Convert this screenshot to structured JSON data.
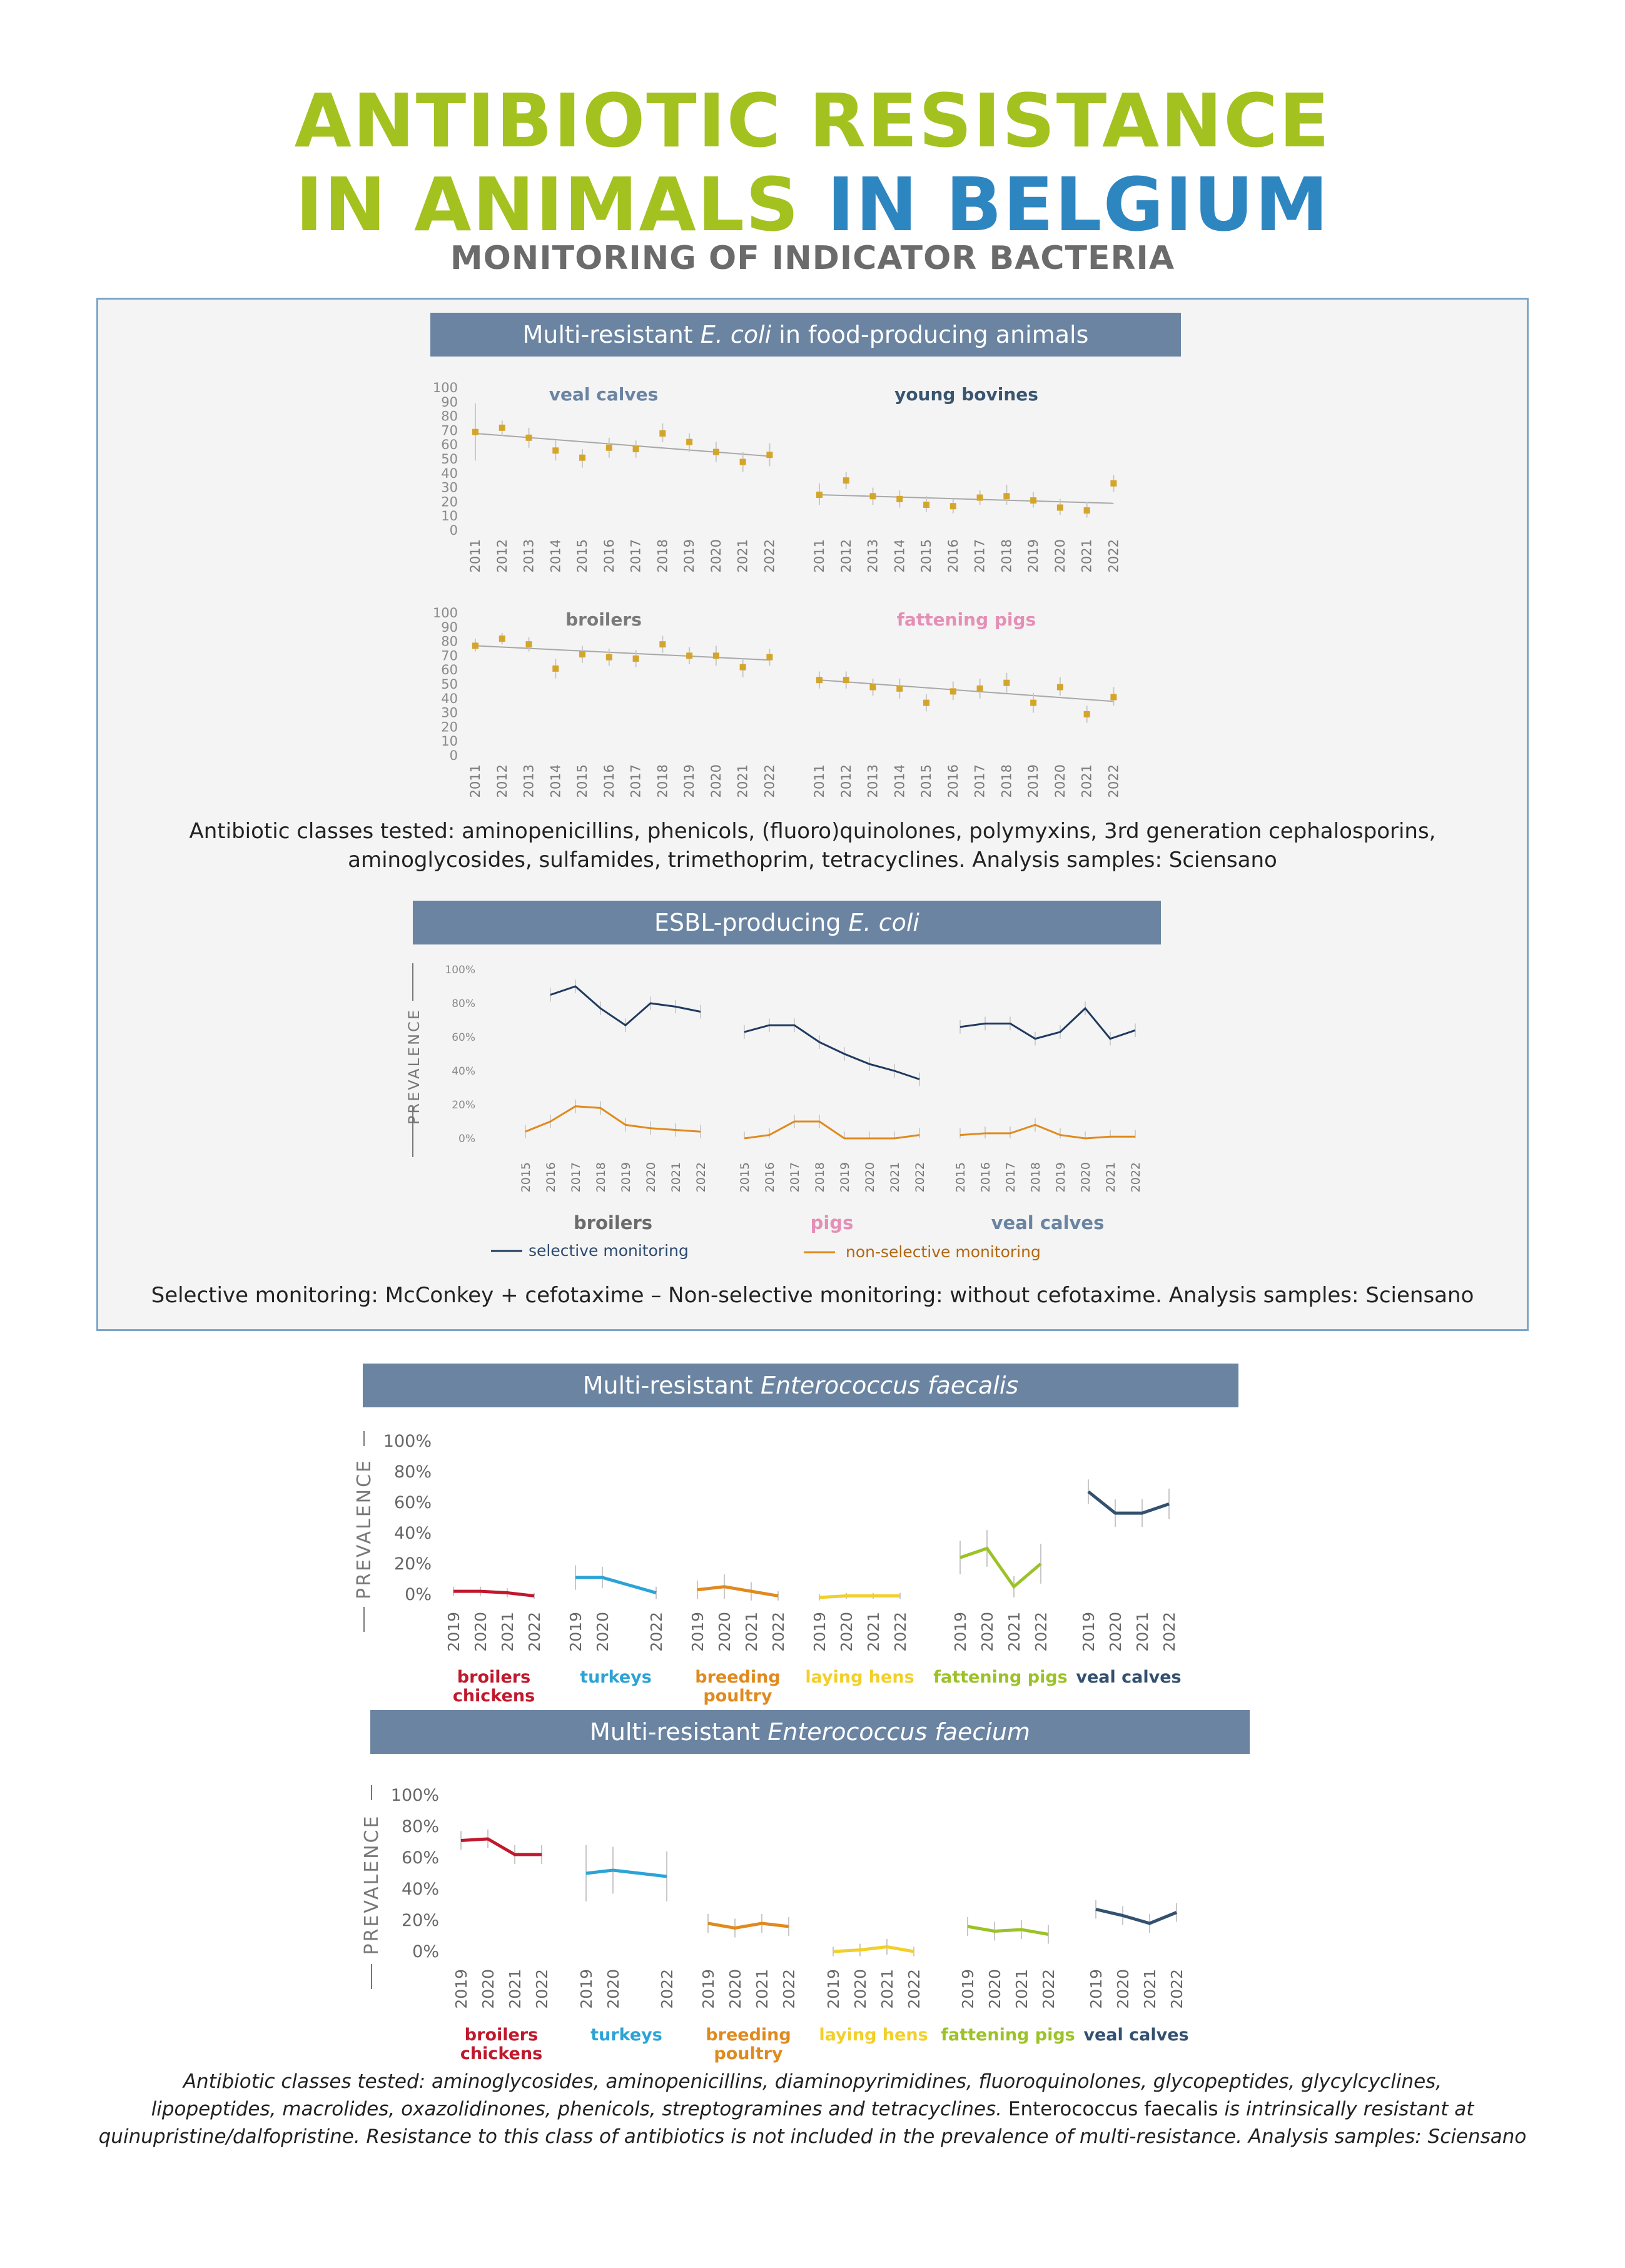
{
  "header": {
    "title_line1": "ANTIBIOTIC RESISTANCE",
    "title_line2_part1": "IN ANIMALS",
    "title_line2_part2": "IN BELGIUM",
    "subtitle": "MONITORING OF INDICATOR BACTERIA"
  },
  "colors": {
    "green": "#a3c21f",
    "blue": "#2e86c1",
    "band": "#6a84a2",
    "gold": "#d4a52a",
    "navy": "#1f3a5f",
    "orange": "#e08a1e",
    "red": "#c0182c",
    "cyan": "#2ba3d6",
    "yellow": "#f2cf2a",
    "lime": "#9cc227",
    "darkblue": "#33506f"
  },
  "sections": {
    "multi_ecoli": {
      "band_pre": "Multi-resistant ",
      "band_it": "E. coli",
      "band_post": " in food-producing animals"
    },
    "esbl": {
      "band_pre": "ESBL-producing ",
      "band_it": "E. coli"
    },
    "faecalis": {
      "band_pre": "Multi-resistant ",
      "band_it": "Enterococcus faecalis"
    },
    "faecium": {
      "band_pre": "Multi-resistant ",
      "band_it": "Enterococcus faecium"
    }
  },
  "notes": {
    "ecoli_line1": "Antibiotic classes tested: aminopenicillins, phenicols, (fluoro)quinolones, polymyxins, 3rd generation cephalosporins,",
    "ecoli_line2": "aminoglycosides, sulfamides, trimethoprim, tetracyclines. Analysis samples: Sciensano",
    "esbl": "Selective monitoring: McConkey + cefotaxime  – Non-selective monitoring: without cefotaxime. Analysis samples: Sciensano",
    "foot_line1": "Antibiotic classes tested: aminoglycosides, aminopenicillins, diaminopyrimidines, fluoroquinolones, glycopeptides, glycylcyclines,",
    "foot_line2_it": "lipopeptides, macrolides, oxazolidinones, phenicols, streptogramines and tetracyclines.",
    "foot_line2_up": " Enterococcus faecalis ",
    "foot_line2_it2": "is intrinsically resistant at",
    "foot_line3": "quinupristine/dalfopristine. Resistance to this class of antibiotics is not included in the prevalence of multi-resistance. Analysis samples: Sciensano"
  },
  "chart_data": [
    {
      "id": "multi-ecoli",
      "type": "scatter",
      "ylim": [
        0,
        100
      ],
      "yticks": [
        "0",
        "10",
        "20",
        "30",
        "40",
        "50",
        "60",
        "70",
        "80",
        "90",
        "100"
      ],
      "x": [
        "2011",
        "2012",
        "2013",
        "2014",
        "2015",
        "2016",
        "2017",
        "2018",
        "2019",
        "2020",
        "2021",
        "2022"
      ],
      "panels": [
        {
          "name": "veal calves",
          "color": "#6a84a2",
          "values": [
            69,
            72,
            65,
            56,
            51,
            58,
            57,
            68,
            62,
            55,
            48,
            53
          ],
          "lower": [
            49,
            66,
            58,
            49,
            44,
            51,
            51,
            62,
            55,
            48,
            41,
            45
          ],
          "upper": [
            89,
            77,
            72,
            63,
            57,
            65,
            63,
            75,
            68,
            62,
            55,
            61
          ],
          "trend": [
            68,
            52
          ]
        },
        {
          "name": "young bovines",
          "color": "#3a5570",
          "values": [
            25,
            35,
            24,
            22,
            18,
            17,
            23,
            24,
            21,
            16,
            14,
            33
          ],
          "lower": [
            18,
            29,
            18,
            16,
            13,
            12,
            18,
            18,
            16,
            11,
            9,
            27
          ],
          "upper": [
            33,
            41,
            30,
            28,
            24,
            22,
            28,
            32,
            27,
            22,
            20,
            39
          ],
          "trend": [
            25,
            19
          ]
        },
        {
          "name": "broilers",
          "color": "#7a7a7a",
          "values": [
            77,
            82,
            78,
            61,
            71,
            69,
            68,
            78,
            70,
            70,
            62,
            69
          ],
          "lower": [
            73,
            78,
            73,
            54,
            65,
            63,
            62,
            72,
            64,
            63,
            55,
            63
          ],
          "upper": [
            82,
            86,
            83,
            68,
            77,
            75,
            74,
            84,
            76,
            77,
            68,
            75
          ],
          "trend": [
            77,
            67
          ]
        },
        {
          "name": "fattening pigs",
          "color": "#e58fb6",
          "values": [
            53,
            53,
            48,
            47,
            37,
            45,
            47,
            51,
            37,
            48,
            29,
            41
          ],
          "lower": [
            47,
            47,
            42,
            40,
            31,
            39,
            40,
            44,
            30,
            42,
            23,
            35
          ],
          "upper": [
            59,
            59,
            54,
            54,
            43,
            52,
            54,
            58,
            44,
            55,
            35,
            48
          ],
          "trend": [
            53,
            38
          ]
        }
      ]
    },
    {
      "id": "esbl",
      "type": "line",
      "ylabel": "PREVALENCE",
      "ylim": [
        0,
        100
      ],
      "yticks": [
        "0%",
        "20%",
        "40%",
        "60%",
        "80%",
        "100%"
      ],
      "legend": [
        "selective monitoring",
        "non-selective monitoring"
      ],
      "x": [
        "2015",
        "2016",
        "2017",
        "2018",
        "2019",
        "2020",
        "2021",
        "2022"
      ],
      "groups": [
        {
          "name": "broilers",
          "color": "#6b6b6b",
          "selective": [
            null,
            85,
            90,
            77,
            67,
            80,
            78,
            75
          ],
          "non_selective": [
            4,
            10,
            19,
            18,
            8,
            6,
            5,
            4
          ]
        },
        {
          "name": "pigs",
          "color": "#e58fb6",
          "selective": [
            63,
            67,
            67,
            57,
            50,
            44,
            40,
            35
          ],
          "non_selective": [
            0,
            2,
            10,
            10,
            0,
            0,
            0,
            2
          ]
        },
        {
          "name": "veal calves",
          "color": "#6a84a2",
          "selective": [
            66,
            68,
            68,
            59,
            63,
            77,
            59,
            64
          ],
          "non_selective": [
            2,
            3,
            3,
            8,
            2,
            0,
            1,
            1
          ]
        }
      ]
    },
    {
      "id": "faecalis",
      "type": "line",
      "ylabel": "PREVALENCE",
      "ylim": [
        0,
        100
      ],
      "yticks": [
        "0%",
        "20%",
        "40%",
        "60%",
        "80%",
        "100%"
      ],
      "groups": [
        {
          "name": "broilers chickens",
          "label1": "broilers",
          "label2": "chickens",
          "color": "#c0182c",
          "x": [
            "2019",
            "2020",
            "2021",
            "2022"
          ],
          "values": [
            2,
            2,
            1,
            -1
          ],
          "err": [
            3,
            3,
            3,
            2
          ]
        },
        {
          "name": "turkeys",
          "label1": "turkeys",
          "label2": "",
          "color": "#2ba3d6",
          "x": [
            "2019",
            "2020",
            "2022"
          ],
          "values": [
            11,
            11,
            1
          ],
          "err": [
            8,
            7,
            4
          ]
        },
        {
          "name": "breeding poultry",
          "label1": "breeding",
          "label2": "poultry",
          "color": "#e08a1e",
          "x": [
            "2019",
            "2020",
            "2021",
            "2022"
          ],
          "values": [
            3,
            5,
            2,
            -1
          ],
          "err": [
            6,
            8,
            6,
            3
          ]
        },
        {
          "name": "laying hens",
          "label1": "laying hens",
          "label2": "",
          "color": "#f2cf2a",
          "x": [
            "2019",
            "2020",
            "2021",
            "2022"
          ],
          "values": [
            -2,
            -1,
            -1,
            -1
          ],
          "err": [
            2,
            2,
            2,
            2
          ]
        },
        {
          "name": "fattening pigs",
          "label1": "fattening pigs",
          "label2": "",
          "color": "#9cc227",
          "x": [
            "2019",
            "2020",
            "2021",
            "2022"
          ],
          "values": [
            24,
            30,
            5,
            20
          ],
          "err": [
            11,
            12,
            7,
            13
          ]
        },
        {
          "name": "veal calves",
          "label1": "veal calves",
          "label2": "",
          "color": "#33506f",
          "x": [
            "2019",
            "2020",
            "2021",
            "2022"
          ],
          "values": [
            67,
            53,
            53,
            59
          ],
          "err": [
            8,
            9,
            9,
            10
          ]
        }
      ]
    },
    {
      "id": "faecium",
      "type": "line",
      "ylabel": "PREVALENCE",
      "ylim": [
        0,
        100
      ],
      "yticks": [
        "0%",
        "20%",
        "40%",
        "60%",
        "80%",
        "100%"
      ],
      "groups": [
        {
          "name": "broilers chickens",
          "label1": "broilers",
          "label2": "chickens",
          "color": "#c0182c",
          "x": [
            "2019",
            "2020",
            "2021",
            "2022"
          ],
          "values": [
            71,
            72,
            62,
            62
          ],
          "err": [
            6,
            6,
            6,
            6
          ]
        },
        {
          "name": "turkeys",
          "label1": "turkeys",
          "label2": "",
          "color": "#2ba3d6",
          "x": [
            "2019",
            "2020",
            "2022"
          ],
          "values": [
            50,
            52,
            48
          ],
          "err": [
            18,
            15,
            16
          ]
        },
        {
          "name": "breeding poultry",
          "label1": "breeding",
          "label2": "poultry",
          "color": "#e08a1e",
          "x": [
            "2019",
            "2020",
            "2021",
            "2022"
          ],
          "values": [
            18,
            15,
            18,
            16
          ],
          "err": [
            6,
            6,
            6,
            6
          ]
        },
        {
          "name": "laying hens",
          "label1": "laying hens",
          "label2": "",
          "color": "#f2cf2a",
          "x": [
            "2019",
            "2020",
            "2021",
            "2022"
          ],
          "values": [
            0,
            1,
            3,
            0
          ],
          "err": [
            3,
            4,
            5,
            3
          ]
        },
        {
          "name": "fattening pigs",
          "label1": "fattening pigs",
          "label2": "",
          "color": "#9cc227",
          "x": [
            "2019",
            "2020",
            "2021",
            "2022"
          ],
          "values": [
            16,
            13,
            14,
            11
          ],
          "err": [
            6,
            6,
            6,
            6
          ]
        },
        {
          "name": "veal calves",
          "label1": "veal calves",
          "label2": "",
          "color": "#33506f",
          "x": [
            "2019",
            "2020",
            "2021",
            "2022"
          ],
          "values": [
            27,
            23,
            18,
            25
          ],
          "err": [
            6,
            6,
            6,
            6
          ]
        }
      ]
    }
  ]
}
